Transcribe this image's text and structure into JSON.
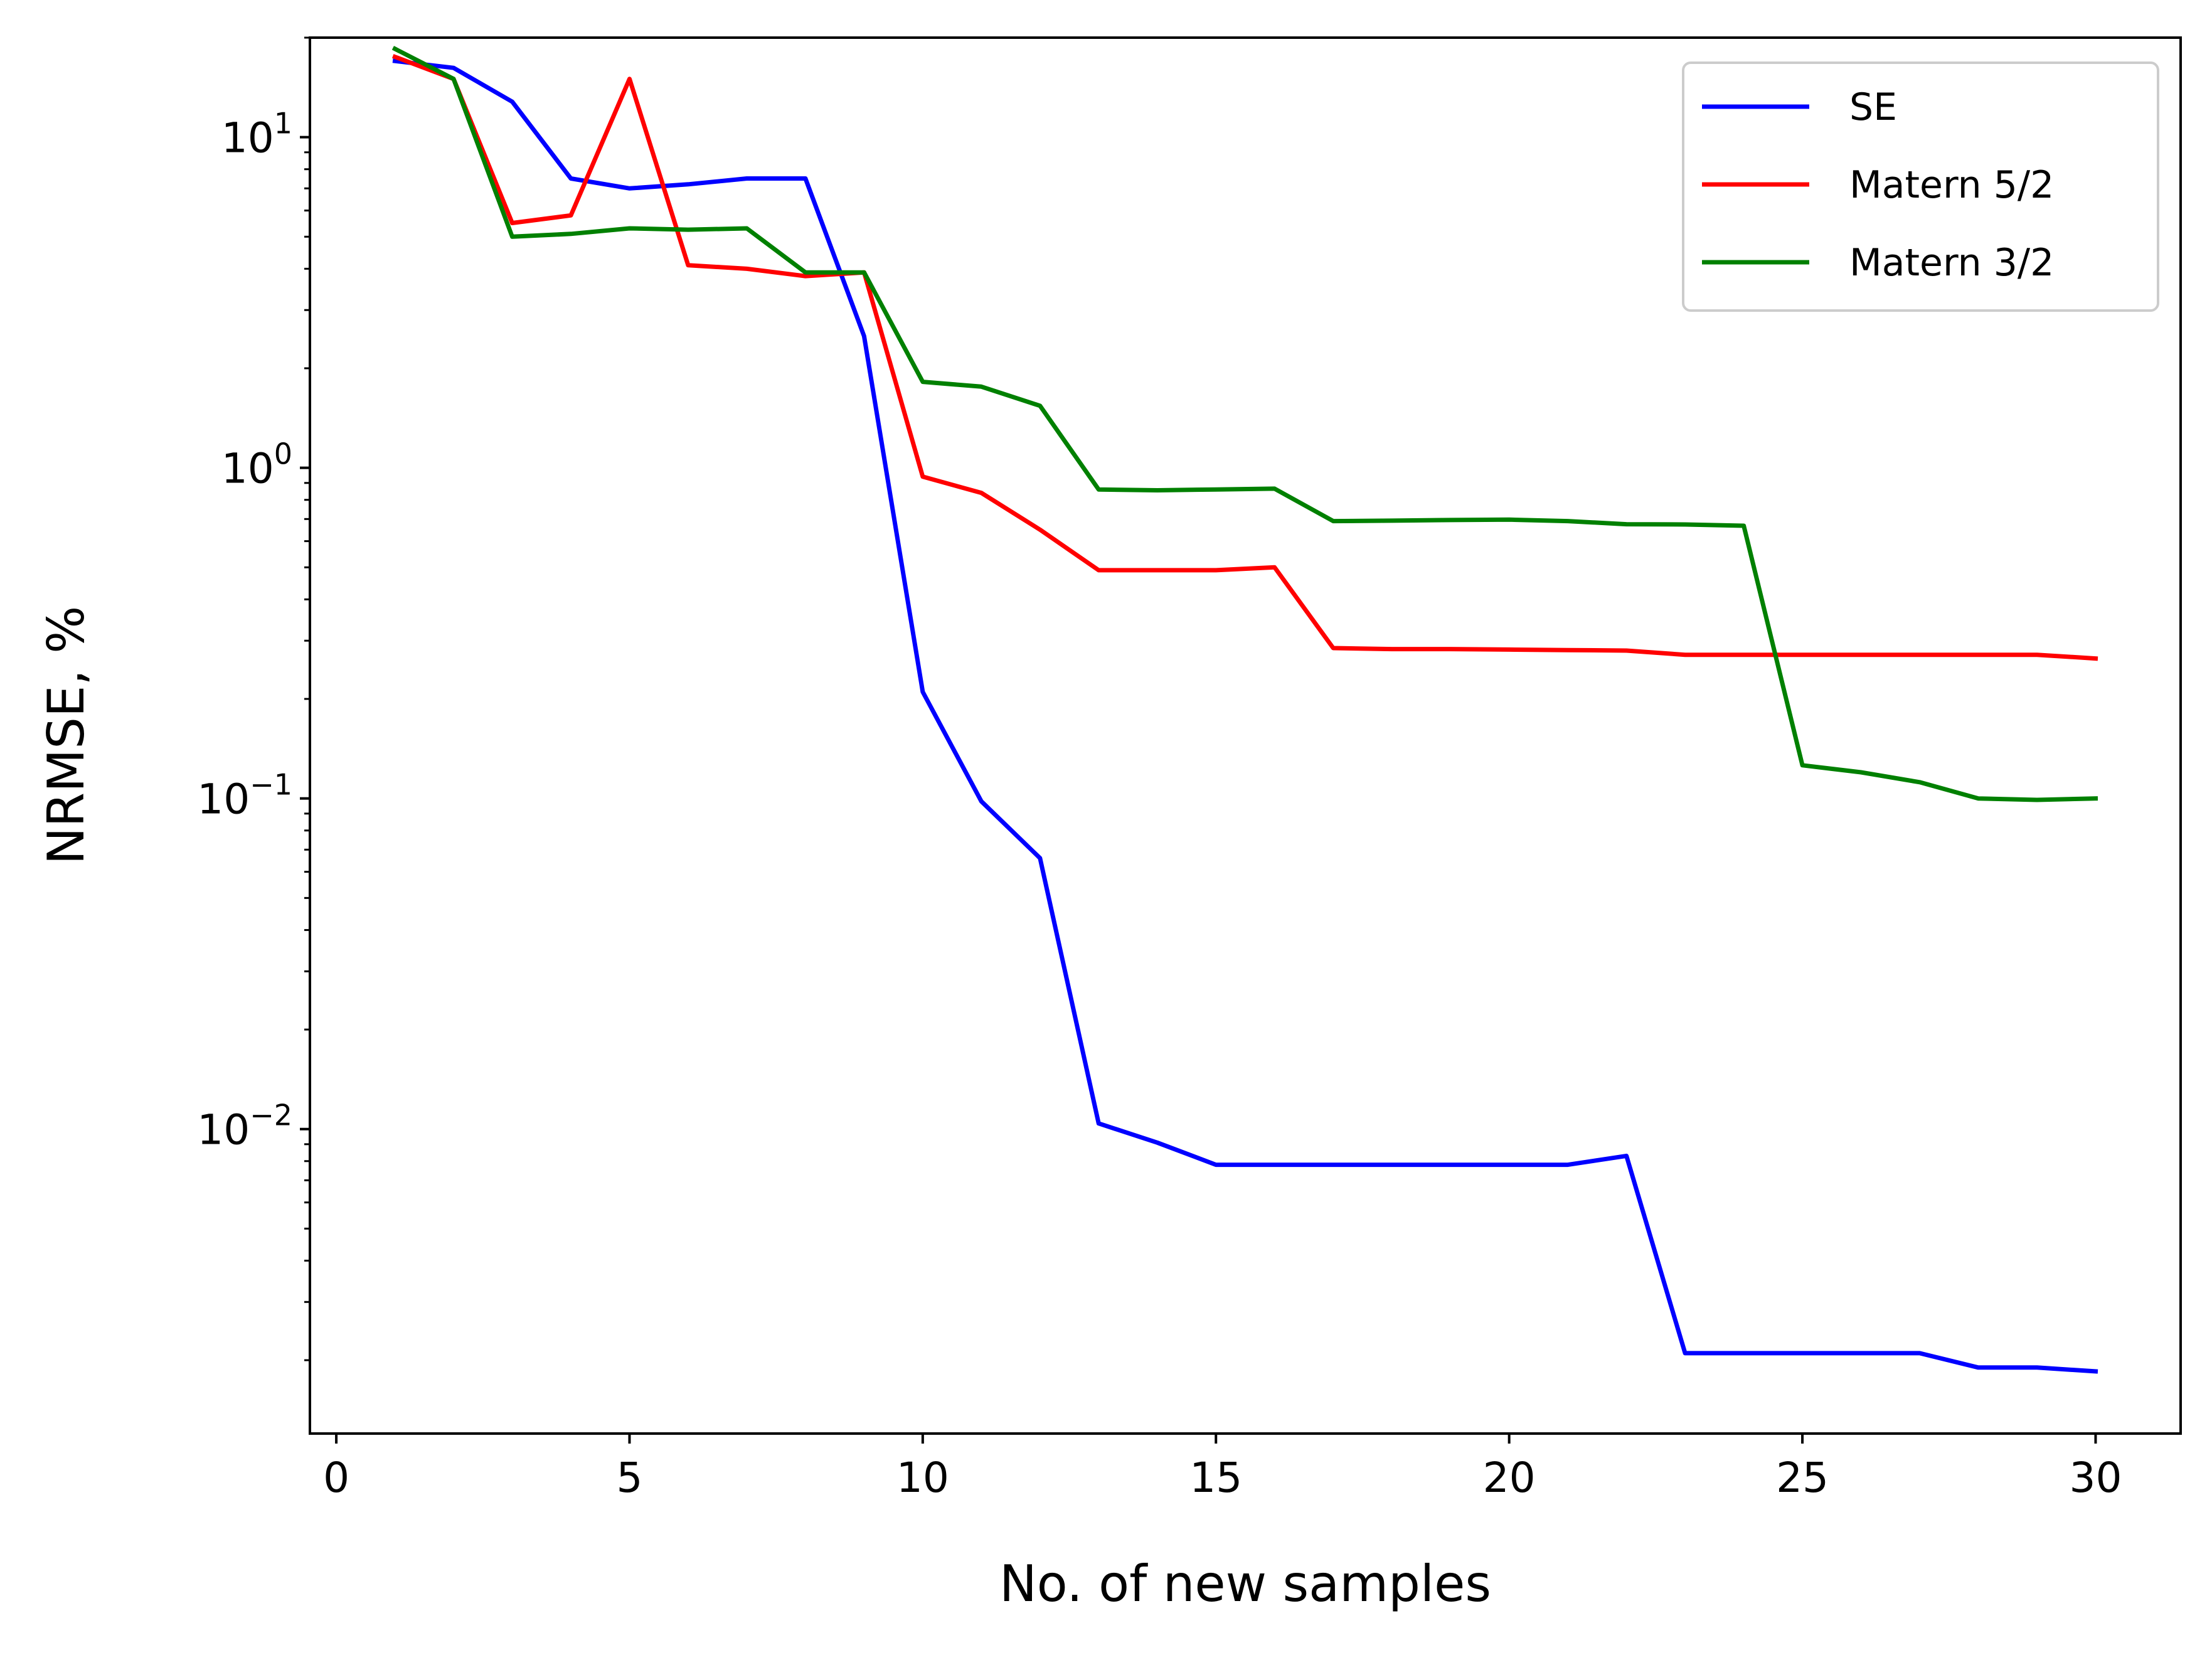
{
  "chart_data": {
    "type": "line",
    "xlabel": "No. of new samples",
    "ylabel": "NRMSE, %",
    "yscale": "log",
    "xlim": [
      -0.45,
      31.45
    ],
    "ylim": [
      0.0012,
      20
    ],
    "xticks": [
      0,
      5,
      10,
      15,
      20,
      25,
      30
    ],
    "yticks": [
      {
        "value": 10,
        "base": "10",
        "exp": "1"
      },
      {
        "value": 1,
        "base": "10",
        "exp": "0"
      },
      {
        "value": 0.1,
        "base": "10",
        "exp": "−1"
      },
      {
        "value": 0.01,
        "base": "10",
        "exp": "−2"
      }
    ],
    "grid": false,
    "legend_position": "top-right",
    "x": [
      1,
      2,
      3,
      4,
      5,
      6,
      7,
      8,
      9,
      10,
      11,
      12,
      13,
      14,
      15,
      16,
      17,
      18,
      19,
      20,
      21,
      22,
      23,
      24,
      25,
      26,
      27,
      28,
      29,
      30
    ],
    "series": [
      {
        "name": "SE",
        "color": "#0000ff",
        "values": [
          17.0,
          16.2,
          12.8,
          7.5,
          7.0,
          7.2,
          7.5,
          7.5,
          2.5,
          0.21,
          0.098,
          0.066,
          0.0104,
          0.0091,
          0.0078,
          0.0078,
          0.0078,
          0.0078,
          0.0078,
          0.0078,
          0.0078,
          0.0083,
          0.0021,
          0.0021,
          0.0021,
          0.0021,
          0.0021,
          0.0019,
          0.0019,
          0.00185
        ]
      },
      {
        "name": "Matern 5/2",
        "color": "#ff0000",
        "values": [
          17.5,
          15.0,
          5.5,
          5.8,
          15.0,
          4.1,
          4.0,
          3.8,
          3.9,
          0.94,
          0.84,
          0.65,
          0.49,
          0.49,
          0.49,
          0.5,
          0.285,
          0.283,
          0.283,
          0.282,
          0.281,
          0.28,
          0.272,
          0.272,
          0.272,
          0.272,
          0.272,
          0.272,
          0.272,
          0.265
        ]
      },
      {
        "name": "Matern 3/2",
        "color": "#008000",
        "values": [
          18.5,
          15.0,
          5.0,
          5.1,
          5.3,
          5.25,
          5.3,
          3.9,
          3.9,
          1.82,
          1.76,
          1.54,
          0.86,
          0.855,
          0.86,
          0.865,
          0.69,
          0.692,
          0.695,
          0.697,
          0.69,
          0.675,
          0.674,
          0.668,
          0.126,
          0.12,
          0.112,
          0.1,
          0.099,
          0.1
        ]
      }
    ]
  }
}
